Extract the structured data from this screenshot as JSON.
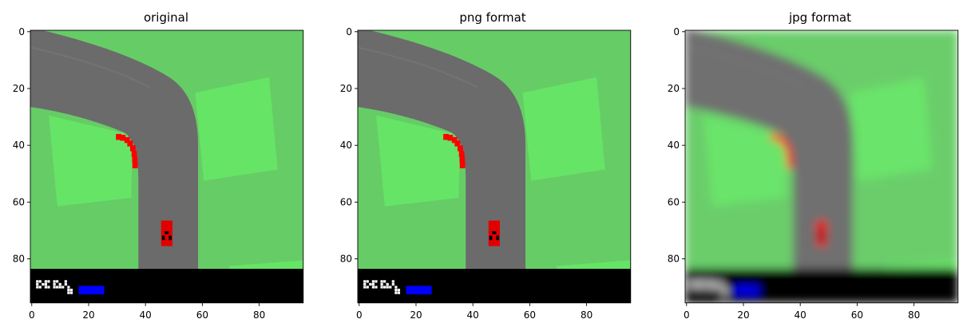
{
  "panels": [
    {
      "title": "original",
      "variant": "original"
    },
    {
      "title": "png format",
      "variant": "png"
    },
    {
      "title": "jpg format",
      "variant": "jpg"
    }
  ],
  "axes": {
    "x_ticks": [
      "0",
      "20",
      "40",
      "60",
      "80"
    ],
    "y_ticks": [
      "0",
      "20",
      "40",
      "60",
      "80"
    ],
    "image_size": [
      96,
      96
    ]
  },
  "scene": {
    "grass_color": "#66cc66",
    "light_grass_color": "#66e466",
    "road_color": "#6b6b6b",
    "hud_color": "#000000",
    "car_color": "#e00000",
    "kerb_colors": [
      "#ff0000",
      "#ffffff"
    ],
    "hud_bar_color": "#0000ff",
    "hud_text_color": "#ffffff"
  }
}
